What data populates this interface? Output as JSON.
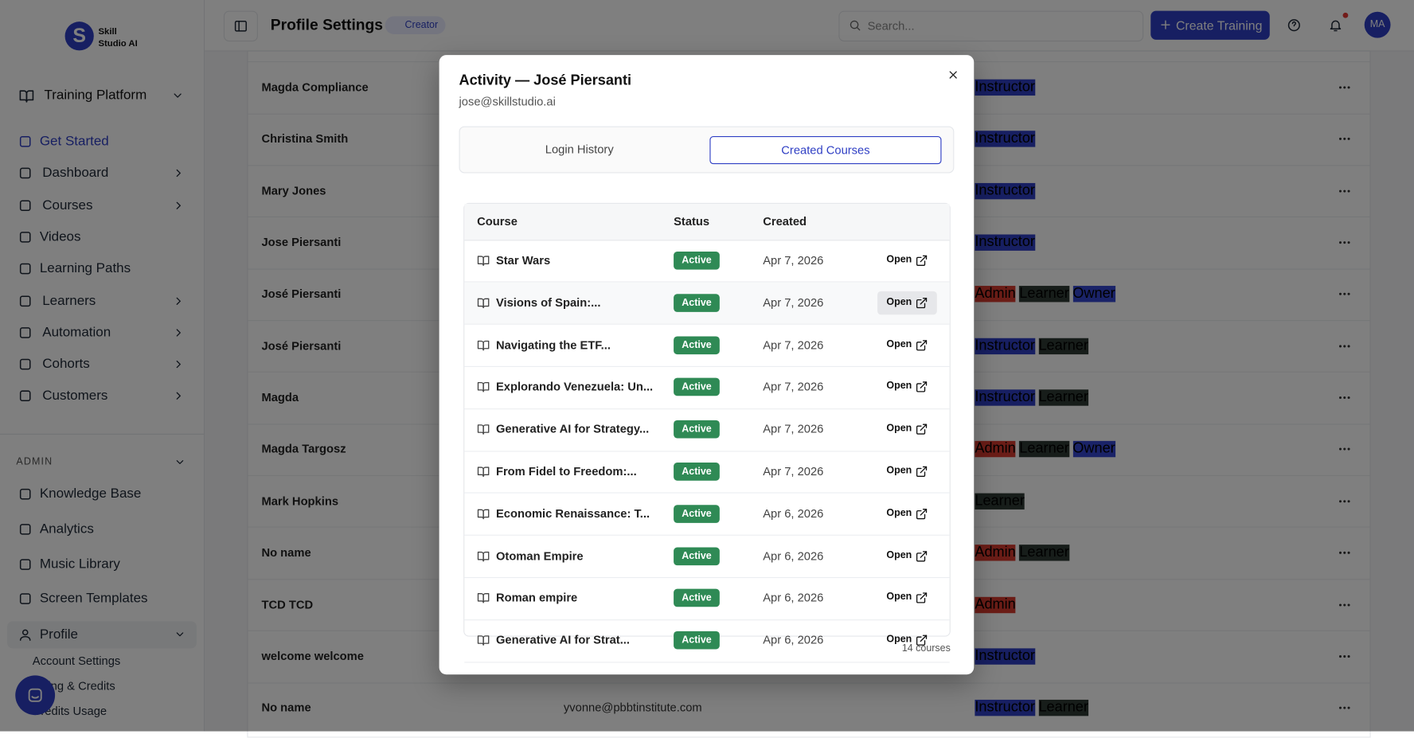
{
  "sidebar": {
    "brand": [
      "Skill",
      "Studio AI"
    ],
    "platform": "Training Platform",
    "nav": [
      {
        "label": "Get Started",
        "active": true
      },
      {
        "label": "Dashboard",
        "expandable": true
      },
      {
        "label": "Courses",
        "expandable": true
      },
      {
        "label": "Videos"
      },
      {
        "label": "Learning Paths"
      },
      {
        "label": "Learners",
        "expandable": true
      },
      {
        "label": "Automation",
        "expandable": true
      },
      {
        "label": "Cohorts",
        "expandable": true
      },
      {
        "label": "Customers",
        "expandable": true
      }
    ],
    "admin_label": "ADMIN",
    "admin": [
      "Knowledge Base",
      "Analytics",
      "Music Library",
      "Screen Templates"
    ],
    "profile": "Profile",
    "profile_items": [
      "Account Settings",
      "Billing & Credits",
      "Credits Usage"
    ]
  },
  "header": {
    "title": "Profile Settings",
    "badge": "Creator",
    "search": "Search...",
    "button": "Create Training",
    "avatar": "MA"
  },
  "users": [
    {
      "name": "Magda Compliance",
      "roles": [
        "Instructor"
      ]
    },
    {
      "name": "Christina Smith",
      "roles": [
        "Instructor"
      ]
    },
    {
      "name": "Mary Jones",
      "roles": [
        "Instructor"
      ]
    },
    {
      "name": "Jose Piersanti",
      "roles": [
        "Instructor"
      ]
    },
    {
      "name": "José Piersanti",
      "roles": [
        "Admin",
        "Learner",
        "Owner"
      ]
    },
    {
      "name": "José Piersanti",
      "roles": [
        "Instructor",
        "Learner"
      ]
    },
    {
      "name": "Magda",
      "roles": [
        "Instructor",
        "Learner"
      ]
    },
    {
      "name": "Magda Targosz",
      "roles": [
        "Admin",
        "Learner",
        "Owner"
      ]
    },
    {
      "name": "Mark Hopkins",
      "roles": [
        "Learner"
      ]
    },
    {
      "name": "No name",
      "roles": [
        "Admin",
        "Learner"
      ]
    },
    {
      "name": "TCD TCD",
      "roles": [
        "Admin"
      ]
    },
    {
      "name": "welcome welcome",
      "roles": [
        "Instructor"
      ]
    },
    {
      "name": "No name",
      "email": "yvonne@pbbtinstitute.com",
      "roles": [
        "Instructor",
        "Learner"
      ]
    }
  ],
  "modal": {
    "title": "Activity — José Piersanti",
    "email": "jose@skillstudio.ai",
    "tabs": [
      "Login History",
      "Created Courses"
    ],
    "active_tab": 1,
    "columns": [
      "Course",
      "Status",
      "Created"
    ],
    "action_label": "Open",
    "rows": [
      {
        "course": "Star Wars",
        "status": "Active",
        "created": "Apr 7, 2026"
      },
      {
        "course": "Visions of Spain:...",
        "status": "Active",
        "created": "Apr 7, 2026"
      },
      {
        "course": "Navigating the ETF...",
        "status": "Active",
        "created": "Apr 7, 2026"
      },
      {
        "course": "Explorando Venezuela: Un...",
        "status": "Active",
        "created": "Apr 7, 2026"
      },
      {
        "course": "Generative AI for Strategy...",
        "status": "Active",
        "created": "Apr 7, 2026"
      },
      {
        "course": "From Fidel to Freedom:...",
        "status": "Active",
        "created": "Apr 7, 2026"
      },
      {
        "course": "Economic Renaissance: T...",
        "status": "Active",
        "created": "Apr 6, 2026"
      },
      {
        "course": "Otoman Empire",
        "status": "Active",
        "created": "Apr 6, 2026"
      },
      {
        "course": "Roman empire",
        "status": "Active",
        "created": "Apr 6, 2026"
      },
      {
        "course": "Generative AI for Strat...",
        "status": "Active",
        "created": "Apr 6, 2026"
      }
    ],
    "footer": "14 courses"
  }
}
